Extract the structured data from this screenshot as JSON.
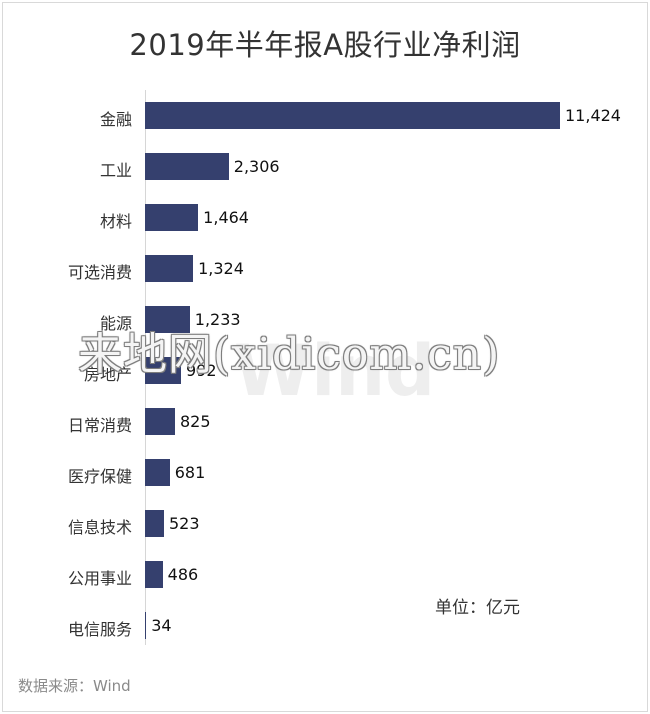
{
  "chart_data": {
    "type": "bar",
    "orientation": "horizontal",
    "title": "2019年半年报A股行业净利润",
    "categories": [
      "金融",
      "工业",
      "材料",
      "可选消费",
      "能源",
      "房地产",
      "日常消费",
      "医疗保健",
      "信息技术",
      "公用事业",
      "电信服务"
    ],
    "values": [
      11424,
      2306,
      1464,
      1324,
      1233,
      992,
      825,
      681,
      523,
      486,
      34
    ],
    "value_labels": [
      "11,424",
      "2,306",
      "1,464",
      "1,324",
      "1,233",
      "992",
      "825",
      "681",
      "523",
      "486",
      "34"
    ],
    "bar_color": "#35406e",
    "unit_label": "单位：亿元",
    "source": "数据来源：Wind"
  },
  "watermark": "来地网(xidicom.cn)",
  "wind_mark": "Wind"
}
